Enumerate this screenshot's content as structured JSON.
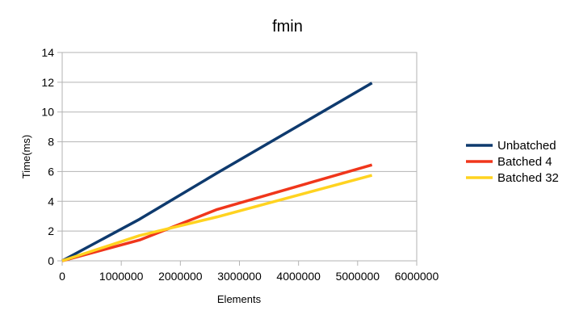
{
  "chart_data": {
    "type": "line",
    "title": "fmin",
    "xlabel": "Elements",
    "ylabel": "Time(ms)",
    "xlim": [
      0,
      6000000
    ],
    "ylim": [
      0,
      14
    ],
    "xticks": [
      0,
      1000000,
      2000000,
      3000000,
      4000000,
      5000000,
      6000000
    ],
    "yticks": [
      0,
      2,
      4,
      6,
      8,
      10,
      12,
      14
    ],
    "grid": "horizontal",
    "legend_position": "right",
    "series": [
      {
        "name": "Unbatched",
        "color": "#0e3a6e",
        "x": [
          0,
          1310720,
          2621440,
          5242880
        ],
        "y": [
          0,
          2.8,
          5.9,
          11.95
        ]
      },
      {
        "name": "Batched 4",
        "color": "#f0361b",
        "x": [
          0,
          1310720,
          2621440,
          5242880
        ],
        "y": [
          0,
          1.4,
          3.45,
          6.45
        ]
      },
      {
        "name": "Batched 32",
        "color": "#ffd320",
        "x": [
          0,
          1310720,
          2621440,
          5242880
        ],
        "y": [
          0,
          1.7,
          2.95,
          5.75
        ]
      }
    ]
  }
}
